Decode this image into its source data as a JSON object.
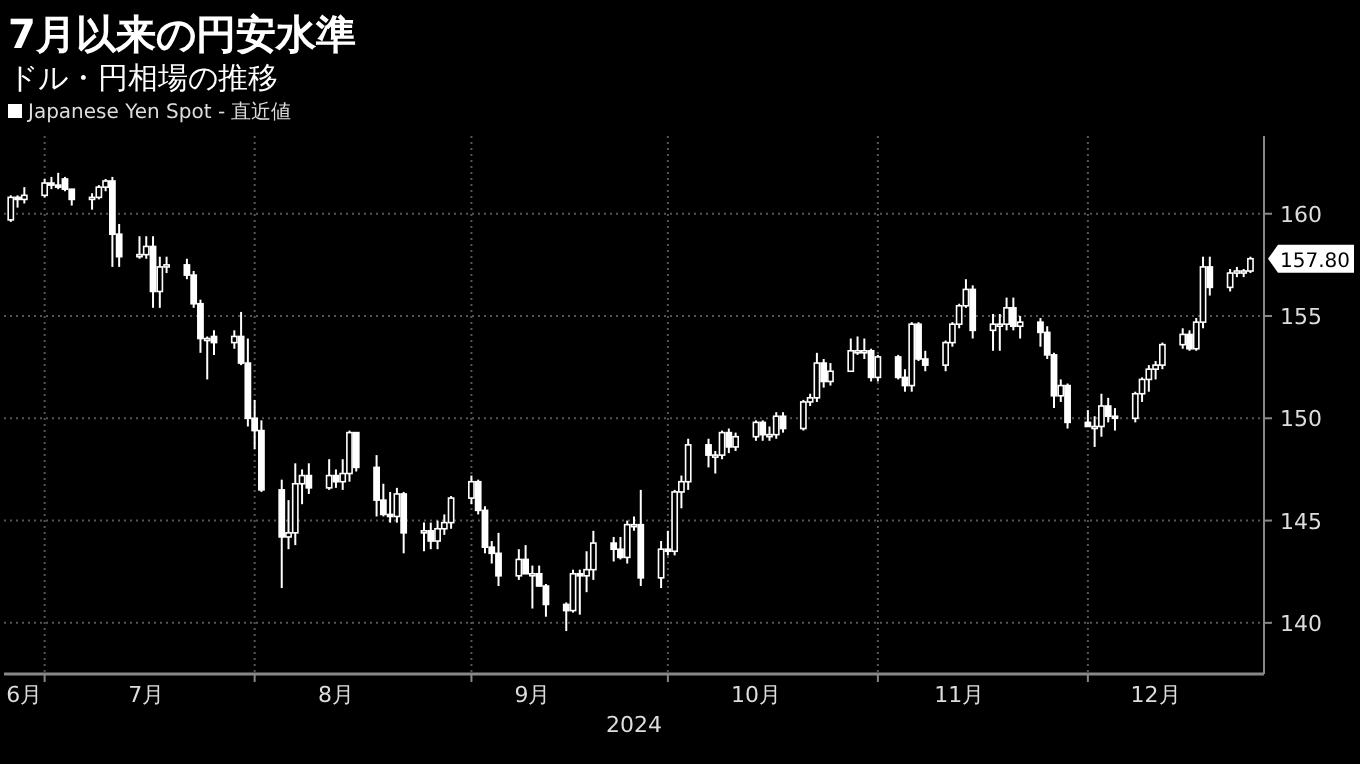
{
  "chart_data": {
    "type": "candlestick",
    "title": "7月以来の円安水準",
    "subtitle": "ドル・円相場の推移",
    "xlabel": "2024",
    "legend": "top left",
    "grid": true,
    "x": [
      "2024-06-26",
      "2024-06-27",
      "2024-06-28",
      "2024-07-01",
      "2024-07-02",
      "2024-07-03",
      "2024-07-04",
      "2024-07-05",
      "2024-07-08",
      "2024-07-09",
      "2024-07-10",
      "2024-07-11",
      "2024-07-12",
      "2024-07-15",
      "2024-07-16",
      "2024-07-17",
      "2024-07-18",
      "2024-07-19",
      "2024-07-22",
      "2024-07-23",
      "2024-07-24",
      "2024-07-25",
      "2024-07-26",
      "2024-07-29",
      "2024-07-30",
      "2024-07-31",
      "2024-08-01",
      "2024-08-02",
      "2024-08-05",
      "2024-08-06",
      "2024-08-07",
      "2024-08-08",
      "2024-08-09",
      "2024-08-12",
      "2024-08-13",
      "2024-08-14",
      "2024-08-15",
      "2024-08-16",
      "2024-08-19",
      "2024-08-20",
      "2024-08-21",
      "2024-08-22",
      "2024-08-23",
      "2024-08-26",
      "2024-08-27",
      "2024-08-28",
      "2024-08-29",
      "2024-08-30",
      "2024-09-02",
      "2024-09-03",
      "2024-09-04",
      "2024-09-05",
      "2024-09-06",
      "2024-09-09",
      "2024-09-10",
      "2024-09-11",
      "2024-09-12",
      "2024-09-13",
      "2024-09-16",
      "2024-09-17",
      "2024-09-18",
      "2024-09-19",
      "2024-09-20",
      "2024-09-23",
      "2024-09-24",
      "2024-09-25",
      "2024-09-26",
      "2024-09-27",
      "2024-09-30",
      "2024-10-01",
      "2024-10-02",
      "2024-10-03",
      "2024-10-04",
      "2024-10-07",
      "2024-10-08",
      "2024-10-09",
      "2024-10-10",
      "2024-10-11",
      "2024-10-14",
      "2024-10-15",
      "2024-10-16",
      "2024-10-17",
      "2024-10-18",
      "2024-10-21",
      "2024-10-22",
      "2024-10-23",
      "2024-10-24",
      "2024-10-25",
      "2024-10-28",
      "2024-10-29",
      "2024-10-30",
      "2024-10-31",
      "2024-11-01",
      "2024-11-04",
      "2024-11-05",
      "2024-11-06",
      "2024-11-07",
      "2024-11-08",
      "2024-11-11",
      "2024-11-12",
      "2024-11-13",
      "2024-11-14",
      "2024-11-15",
      "2024-11-18",
      "2024-11-19",
      "2024-11-20",
      "2024-11-21",
      "2024-11-22",
      "2024-11-25",
      "2024-11-26",
      "2024-11-27",
      "2024-11-28",
      "2024-11-29",
      "2024-12-02",
      "2024-12-03",
      "2024-12-04",
      "2024-12-05",
      "2024-12-06",
      "2024-12-09",
      "2024-12-10",
      "2024-12-11",
      "2024-12-12",
      "2024-12-13",
      "2024-12-16",
      "2024-12-17",
      "2024-12-18",
      "2024-12-19",
      "2024-12-20",
      "2024-12-23",
      "2024-12-24",
      "2024-12-25",
      "2024-12-26"
    ],
    "xlim": [
      "2024-06-25",
      "2024-12-28"
    ],
    "xticks": [
      {
        "value": "2024-06-28",
        "label": "6月"
      },
      {
        "value": "2024-07-01",
        "label": null
      },
      {
        "value": "2024-07-16",
        "label": "7月"
      },
      {
        "value": "2024-08-01",
        "label": null
      },
      {
        "value": "2024-08-13",
        "label": "8月"
      },
      {
        "value": "2024-09-02",
        "label": null
      },
      {
        "value": "2024-09-11",
        "label": "9月"
      },
      {
        "value": "2024-10-01",
        "label": null
      },
      {
        "value": "2024-10-14",
        "label": "10月"
      },
      {
        "value": "2024-11-01",
        "label": null
      },
      {
        "value": "2024-11-13",
        "label": "11月"
      },
      {
        "value": "2024-12-02",
        "label": null
      },
      {
        "value": "2024-12-12",
        "label": "12月"
      }
    ],
    "ylim": [
      137.5,
      163.8
    ],
    "yticks": [
      140,
      145,
      150,
      155,
      160
    ],
    "annotations": [
      {
        "text": "157.80",
        "x": "2024-12-26",
        "y": 157.8
      }
    ],
    "series": [
      {
        "name": "Japanese Yen Spot - 直近値",
        "color": "#ffffff",
        "ohlc": [
          [
            159.7,
            160.9,
            159.6,
            160.8
          ],
          [
            160.8,
            160.9,
            160.3,
            160.7
          ],
          [
            160.7,
            161.3,
            160.5,
            160.9
          ],
          [
            160.9,
            161.7,
            160.8,
            161.5
          ],
          [
            161.5,
            161.8,
            161.2,
            161.4
          ],
          [
            161.4,
            162.0,
            161.2,
            161.3
          ],
          [
            161.7,
            161.8,
            161.1,
            161.2
          ],
          [
            161.2,
            161.2,
            160.4,
            160.7
          ],
          [
            160.7,
            161.0,
            160.2,
            160.8
          ],
          [
            160.8,
            161.4,
            160.7,
            161.3
          ],
          [
            161.3,
            161.7,
            161.1,
            161.6
          ],
          [
            161.6,
            161.8,
            157.4,
            159.0
          ],
          [
            159.0,
            159.5,
            157.4,
            157.9
          ],
          [
            157.9,
            158.9,
            157.8,
            158.0
          ],
          [
            158.0,
            158.9,
            157.8,
            158.4
          ],
          [
            158.4,
            158.9,
            155.4,
            156.2
          ],
          [
            156.2,
            157.9,
            155.4,
            157.4
          ],
          [
            157.4,
            157.9,
            157.1,
            157.5
          ],
          [
            157.5,
            157.8,
            156.8,
            157.0
          ],
          [
            157.0,
            157.2,
            155.4,
            155.6
          ],
          [
            155.6,
            155.8,
            153.2,
            153.9
          ],
          [
            153.9,
            154.0,
            151.9,
            153.9
          ],
          [
            154.0,
            154.3,
            153.1,
            153.7
          ],
          [
            153.7,
            154.3,
            153.4,
            154.0
          ],
          [
            154.0,
            155.2,
            152.6,
            152.7
          ],
          [
            152.7,
            153.9,
            149.6,
            150.0
          ],
          [
            150.0,
            150.9,
            148.5,
            149.4
          ],
          [
            149.4,
            149.9,
            146.4,
            146.5
          ],
          [
            146.5,
            147.0,
            141.7,
            144.2
          ],
          [
            144.2,
            146.0,
            143.6,
            144.4
          ],
          [
            144.4,
            147.8,
            143.8,
            146.8
          ],
          [
            146.8,
            147.5,
            145.8,
            147.2
          ],
          [
            147.2,
            147.8,
            146.3,
            146.6
          ],
          [
            146.6,
            148.0,
            146.5,
            147.2
          ],
          [
            147.2,
            147.5,
            146.6,
            146.9
          ],
          [
            146.9,
            148.0,
            146.5,
            147.3
          ],
          [
            147.3,
            149.4,
            146.9,
            149.3
          ],
          [
            149.3,
            149.3,
            147.4,
            147.6
          ],
          [
            147.6,
            148.2,
            145.2,
            146.0
          ],
          [
            146.0,
            146.8,
            145.2,
            145.3
          ],
          [
            145.3,
            146.4,
            144.9,
            145.2
          ],
          [
            145.2,
            146.6,
            144.9,
            146.3
          ],
          [
            146.3,
            146.4,
            143.4,
            144.4
          ],
          [
            144.4,
            144.9,
            143.5,
            144.5
          ],
          [
            144.5,
            144.9,
            143.6,
            144.0
          ],
          [
            144.0,
            145.0,
            143.6,
            144.6
          ],
          [
            144.6,
            145.3,
            144.3,
            144.9
          ],
          [
            144.9,
            146.2,
            144.6,
            146.1
          ],
          [
            146.1,
            147.2,
            145.8,
            146.9
          ],
          [
            146.9,
            147.0,
            145.3,
            145.5
          ],
          [
            145.5,
            145.7,
            143.4,
            143.7
          ],
          [
            143.7,
            144.0,
            142.9,
            143.4
          ],
          [
            143.4,
            144.4,
            141.8,
            142.3
          ],
          [
            142.3,
            143.6,
            142.1,
            143.1
          ],
          [
            143.1,
            143.8,
            142.4,
            142.4
          ],
          [
            142.4,
            142.8,
            140.7,
            142.4
          ],
          [
            142.4,
            142.8,
            141.8,
            141.8
          ],
          [
            141.8,
            141.9,
            140.3,
            140.9
          ],
          [
            140.9,
            141.0,
            139.6,
            140.6
          ],
          [
            140.6,
            142.6,
            140.5,
            142.4
          ],
          [
            142.4,
            142.6,
            140.4,
            142.3
          ],
          [
            142.3,
            143.5,
            141.5,
            142.6
          ],
          [
            142.6,
            144.5,
            142.1,
            143.9
          ],
          [
            143.9,
            144.2,
            143.0,
            143.6
          ],
          [
            143.6,
            144.2,
            143.1,
            143.2
          ],
          [
            143.2,
            145.0,
            142.9,
            144.8
          ],
          [
            144.8,
            145.2,
            144.5,
            144.8
          ],
          [
            144.8,
            146.5,
            141.8,
            142.2
          ],
          [
            142.2,
            144.0,
            141.7,
            143.6
          ],
          [
            143.6,
            144.5,
            143.3,
            143.5
          ],
          [
            143.5,
            146.5,
            143.3,
            146.4
          ],
          [
            146.4,
            147.2,
            145.6,
            146.9
          ],
          [
            146.9,
            149.0,
            146.5,
            148.7
          ],
          [
            148.7,
            149.0,
            147.6,
            148.2
          ],
          [
            148.2,
            148.4,
            147.3,
            148.2
          ],
          [
            148.2,
            149.4,
            148.0,
            149.3
          ],
          [
            149.3,
            149.5,
            148.3,
            148.6
          ],
          [
            148.6,
            149.3,
            148.4,
            149.1
          ],
          [
            149.1,
            149.9,
            148.9,
            149.8
          ],
          [
            149.8,
            149.9,
            148.9,
            149.2
          ],
          [
            149.2,
            149.6,
            148.9,
            149.2
          ],
          [
            149.2,
            150.3,
            149.0,
            150.1
          ],
          [
            150.1,
            150.3,
            149.3,
            149.5
          ],
          [
            149.5,
            150.9,
            149.4,
            150.8
          ],
          [
            150.8,
            151.2,
            150.6,
            151.0
          ],
          [
            151.0,
            153.2,
            150.8,
            152.7
          ],
          [
            152.7,
            152.9,
            151.5,
            151.8
          ],
          [
            151.8,
            152.7,
            151.6,
            152.3
          ],
          [
            152.3,
            153.9,
            152.3,
            153.3
          ],
          [
            153.3,
            154.0,
            153.1,
            153.3
          ],
          [
            153.3,
            153.9,
            152.9,
            153.3
          ],
          [
            153.3,
            153.4,
            151.8,
            152.0
          ],
          [
            152.0,
            153.1,
            151.8,
            153.0
          ],
          [
            153.0,
            153.1,
            151.9,
            152.0
          ],
          [
            152.0,
            152.4,
            151.3,
            151.6
          ],
          [
            151.6,
            154.7,
            151.3,
            154.6
          ],
          [
            154.6,
            154.7,
            152.8,
            152.9
          ],
          [
            152.9,
            153.3,
            152.3,
            152.6
          ],
          [
            152.6,
            153.8,
            152.3,
            153.7
          ],
          [
            153.7,
            154.7,
            153.5,
            154.6
          ],
          [
            154.6,
            155.6,
            154.4,
            155.5
          ],
          [
            155.5,
            156.8,
            155.4,
            156.3
          ],
          [
            156.3,
            156.5,
            153.9,
            154.3
          ],
          [
            154.3,
            155.1,
            153.3,
            154.6
          ],
          [
            154.6,
            155.1,
            153.3,
            154.6
          ],
          [
            154.6,
            155.9,
            154.3,
            155.4
          ],
          [
            155.4,
            155.9,
            154.3,
            154.5
          ],
          [
            154.5,
            155.0,
            153.9,
            154.7
          ],
          [
            154.7,
            154.9,
            153.5,
            154.2
          ],
          [
            154.2,
            154.5,
            152.9,
            153.1
          ],
          [
            153.1,
            153.2,
            150.5,
            151.1
          ],
          [
            151.1,
            151.9,
            150.8,
            151.6
          ],
          [
            151.6,
            151.7,
            149.5,
            149.8
          ],
          [
            149.8,
            150.4,
            149.6,
            149.6
          ],
          [
            149.6,
            150.1,
            148.6,
            149.6
          ],
          [
            149.6,
            151.2,
            149.1,
            150.6
          ],
          [
            150.6,
            151.0,
            149.8,
            150.1
          ],
          [
            150.1,
            150.5,
            149.4,
            150.0
          ],
          [
            150.0,
            151.3,
            149.8,
            151.2
          ],
          [
            151.2,
            152.0,
            150.8,
            151.9
          ],
          [
            151.9,
            152.6,
            151.3,
            152.4
          ],
          [
            152.4,
            152.8,
            151.9,
            152.6
          ],
          [
            152.6,
            153.7,
            152.4,
            153.6
          ],
          [
            153.6,
            154.4,
            153.4,
            154.1
          ],
          [
            154.1,
            154.3,
            153.3,
            153.4
          ],
          [
            153.4,
            154.9,
            153.3,
            154.7
          ],
          [
            154.7,
            157.9,
            154.4,
            157.4
          ],
          [
            157.4,
            157.9,
            156.0,
            156.4
          ],
          [
            156.4,
            157.3,
            156.2,
            157.1
          ],
          [
            157.1,
            157.4,
            156.9,
            157.2
          ],
          [
            157.2,
            157.3,
            156.9,
            157.2
          ],
          [
            157.2,
            157.9,
            157.1,
            157.8
          ]
        ]
      }
    ]
  }
}
